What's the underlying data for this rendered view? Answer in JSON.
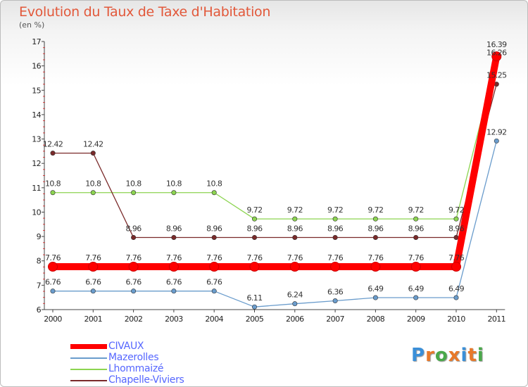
{
  "header": {
    "title": "Evolution du Taux de Taxe d'Habitation",
    "subtitle": "(en %)"
  },
  "logo": {
    "text": "Proxiti",
    "colors": [
      "#3a8fd8",
      "#e8792a",
      "#4aa84a",
      "#e8792a",
      "#3a8fd8",
      "#e8792a",
      "#4aa84a"
    ]
  },
  "chart_data": {
    "type": "line",
    "categories": [
      "2000",
      "2001",
      "2002",
      "2003",
      "2004",
      "2005",
      "2006",
      "2007",
      "2008",
      "2009",
      "2010",
      "2011"
    ],
    "ylim": [
      6,
      17
    ],
    "yticks": [
      6,
      7,
      8,
      9,
      10,
      11,
      12,
      13,
      14,
      15,
      16,
      17
    ],
    "grid": false,
    "legend_position": "bottom-left",
    "series": [
      {
        "name": "CIVAUX",
        "color": "#ff0000",
        "values": [
          7.76,
          7.76,
          7.76,
          7.76,
          7.76,
          7.76,
          7.76,
          7.76,
          7.76,
          7.76,
          7.76,
          16.39
        ],
        "labels": [
          "7.76",
          "7.76",
          "7.76",
          "7.76",
          "7.76",
          "7.76",
          "7.76",
          "7.76",
          "7.76",
          "7.76",
          "7.76",
          "16.39"
        ]
      },
      {
        "name": "Mazerolles",
        "color": "#6a9ccc",
        "values": [
          6.76,
          6.76,
          6.76,
          6.76,
          6.76,
          6.11,
          6.24,
          6.36,
          6.49,
          6.49,
          6.49,
          12.92
        ],
        "labels": [
          "6.76",
          "6.76",
          "6.76",
          "6.76",
          "6.76",
          "6.11",
          "6.24",
          "6.36",
          "6.49",
          "6.49",
          "6.49",
          "12.92"
        ]
      },
      {
        "name": "Lhommaizé",
        "color": "#8cd450",
        "values": [
          10.8,
          10.8,
          10.8,
          10.8,
          10.8,
          9.72,
          9.72,
          9.72,
          9.72,
          9.72,
          9.72,
          16.26
        ],
        "labels": [
          "10.8",
          "10.8",
          "10.8",
          "10.8",
          "10.8",
          "9.72",
          "9.72",
          "9.72",
          "9.72",
          "9.72",
          "9.72",
          "16.26"
        ]
      },
      {
        "name": "Chapelle-Viviers",
        "color": "#7a2a2a",
        "values": [
          12.42,
          12.42,
          8.96,
          8.96,
          8.96,
          8.96,
          8.96,
          8.96,
          8.96,
          8.96,
          8.96,
          15.25
        ],
        "labels": [
          "12.42",
          "12.42",
          "8.96",
          "8.96",
          "8.96",
          "8.96",
          "8.96",
          "8.96",
          "8.96",
          "8.96",
          "8.96",
          "15.25"
        ]
      }
    ]
  }
}
